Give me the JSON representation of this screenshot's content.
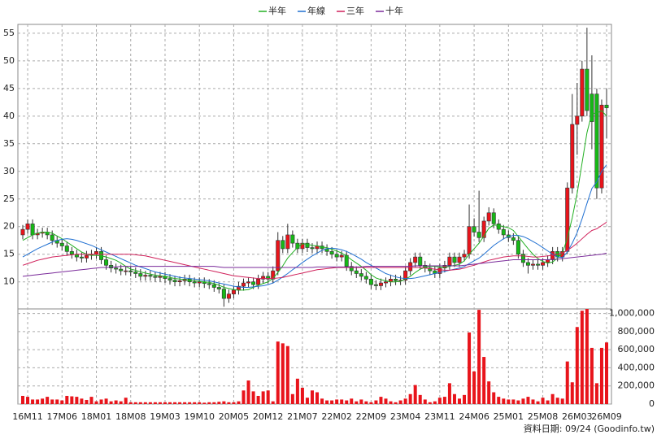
{
  "chart_data": {
    "type": "candlestick",
    "legend": "top",
    "grid": true,
    "source": "資料日期: 09/24 (Goodinfo.tw)",
    "up_color": "#e8141b",
    "down_color": "#16b816",
    "volume_color": "#e8141b",
    "categories": [
      null,
      "16M11",
      null,
      null,
      null,
      null,
      null,
      null,
      "17M06",
      null,
      null,
      null,
      null,
      null,
      null,
      "18M01",
      null,
      null,
      null,
      null,
      null,
      null,
      "18M08",
      null,
      null,
      null,
      null,
      null,
      null,
      "19M03",
      null,
      null,
      null,
      null,
      null,
      null,
      "19M10",
      null,
      null,
      null,
      null,
      null,
      null,
      "20M05",
      null,
      null,
      null,
      null,
      null,
      null,
      "20M12",
      null,
      null,
      null,
      null,
      null,
      null,
      "21M07",
      null,
      null,
      null,
      null,
      null,
      null,
      "22M02",
      null,
      null,
      null,
      null,
      null,
      null,
      "22M09",
      null,
      null,
      null,
      null,
      null,
      null,
      "23M04",
      null,
      null,
      null,
      null,
      null,
      null,
      "23M11",
      null,
      null,
      null,
      null,
      null,
      null,
      "24M06",
      null,
      null,
      null,
      null,
      null,
      null,
      "25M01",
      null,
      null,
      null,
      null,
      null,
      null,
      "25M08",
      null,
      null,
      null,
      null,
      null,
      null,
      "26M03",
      null,
      null,
      null,
      null,
      null,
      "26M09"
    ],
    "open": [
      18.5,
      19.5,
      20.5,
      18.5,
      18.8,
      19.0,
      18.5,
      17.5,
      17.0,
      16.5,
      15.5,
      15.0,
      14.5,
      14.3,
      14.8,
      15.0,
      15.5,
      14.0,
      13.0,
      12.5,
      12.3,
      12.0,
      12.0,
      11.8,
      11.5,
      11.0,
      11.2,
      11.0,
      10.8,
      11.0,
      10.6,
      10.3,
      10.0,
      10.2,
      10.5,
      10.0,
      9.8,
      10.0,
      9.7,
      9.5,
      9.0,
      8.7,
      7.0,
      7.8,
      8.5,
      9.2,
      9.8,
      10.0,
      9.5,
      10.5,
      11.0,
      10.5,
      12.0,
      17.5,
      16.0,
      18.5,
      17.0,
      16.0,
      17.0,
      16.2,
      16.0,
      16.5,
      16.0,
      15.5,
      15.0,
      14.5,
      14.8,
      12.8,
      12.0,
      11.5,
      11.0,
      10.5,
      9.5,
      9.3,
      9.8,
      10.0,
      10.5,
      10.2,
      10.3,
      12.0,
      13.5,
      14.5,
      13.0,
      12.5,
      12.0,
      11.5,
      12.5,
      13.0,
      14.5,
      13.5,
      14.5,
      15.0,
      20.0,
      19.0,
      18.0,
      21.0,
      22.5,
      20.5,
      19.5,
      18.5,
      18.0,
      17.5,
      15.0,
      13.5,
      13.0,
      13.2,
      13.0,
      13.5,
      14.0,
      15.5,
      14.5,
      15.5,
      27.0,
      38.5,
      40.0,
      48.5,
      44.0,
      44.0,
      27.0,
      42.0
    ],
    "high": [
      20.3,
      21.3,
      21.3,
      19.6,
      19.8,
      19.8,
      19.3,
      18.3,
      17.8,
      17.3,
      16.3,
      15.8,
      15.3,
      15.6,
      15.8,
      16.3,
      16.3,
      14.8,
      13.8,
      13.3,
      13.1,
      12.8,
      12.8,
      12.6,
      12.3,
      12.0,
      12.0,
      11.8,
      11.8,
      11.8,
      11.4,
      11.1,
      11.0,
      11.3,
      11.3,
      10.8,
      10.8,
      10.8,
      10.5,
      10.3,
      9.8,
      9.5,
      8.6,
      9.3,
      10.0,
      10.6,
      10.8,
      10.8,
      11.3,
      11.8,
      11.8,
      12.8,
      19.0,
      18.3,
      20.5,
      19.3,
      17.8,
      17.8,
      17.8,
      17.0,
      17.3,
      17.3,
      16.8,
      16.3,
      15.8,
      15.6,
      15.6,
      13.6,
      12.8,
      12.3,
      11.8,
      11.3,
      10.3,
      10.6,
      10.8,
      11.3,
      11.3,
      11.1,
      12.8,
      14.3,
      15.3,
      15.3,
      13.8,
      13.3,
      12.8,
      13.3,
      13.8,
      15.3,
      15.3,
      15.3,
      15.8,
      24.0,
      21.5,
      26.5,
      21.8,
      23.5,
      23.3,
      21.3,
      20.3,
      19.3,
      18.8,
      18.3,
      15.8,
      14.3,
      14.0,
      14.0,
      14.3,
      14.8,
      16.3,
      16.3,
      16.3,
      28.0,
      44.0,
      46.0,
      50.0,
      56.0,
      51.0,
      45.0,
      43.0,
      45.0
    ],
    "low": [
      17.7,
      18.7,
      17.7,
      17.7,
      18.0,
      17.7,
      16.7,
      16.2,
      15.7,
      14.7,
      14.2,
      13.7,
      13.5,
      13.5,
      14.0,
      14.2,
      13.2,
      12.2,
      11.7,
      11.5,
      11.2,
      11.2,
      11.0,
      10.7,
      10.2,
      10.2,
      10.2,
      10.0,
      10.0,
      9.8,
      9.5,
      9.2,
      9.2,
      9.4,
      9.2,
      9.0,
      9.0,
      8.9,
      8.7,
      8.2,
      7.9,
      5.5,
      6.2,
      7.0,
      7.7,
      8.4,
      9.0,
      8.7,
      8.7,
      9.7,
      9.7,
      9.7,
      11.2,
      15.2,
      15.2,
      16.2,
      15.2,
      15.2,
      15.4,
      15.2,
      15.2,
      15.2,
      14.7,
      14.2,
      13.7,
      13.7,
      12.0,
      11.2,
      10.7,
      10.2,
      9.7,
      8.7,
      8.5,
      8.5,
      9.0,
      9.2,
      9.4,
      9.4,
      9.5,
      11.2,
      12.7,
      12.2,
      11.7,
      11.2,
      10.7,
      10.7,
      11.7,
      12.2,
      12.7,
      12.7,
      13.7,
      14.2,
      18.2,
      17.2,
      17.2,
      20.2,
      19.7,
      18.7,
      17.7,
      17.2,
      16.7,
      14.2,
      12.7,
      11.5,
      12.2,
      12.2,
      12.2,
      12.7,
      13.2,
      13.7,
      13.7,
      15.0,
      26.0,
      33.0,
      39.0,
      40.0,
      34.0,
      25.0,
      26.0,
      36.0
    ],
    "close": [
      19.5,
      20.5,
      18.5,
      18.8,
      19.0,
      18.5,
      17.5,
      17.0,
      16.5,
      15.5,
      15.0,
      14.5,
      14.3,
      14.8,
      15.0,
      15.5,
      14.0,
      13.0,
      12.5,
      12.3,
      12.0,
      12.0,
      11.8,
      11.5,
      11.0,
      11.2,
      11.0,
      10.8,
      11.0,
      10.6,
      10.3,
      10.0,
      10.2,
      10.5,
      10.0,
      9.8,
      10.0,
      9.7,
      9.5,
      9.0,
      8.7,
      7.0,
      7.8,
      8.5,
      9.2,
      9.8,
      10.0,
      9.5,
      10.5,
      11.0,
      10.5,
      12.0,
      17.5,
      16.0,
      18.5,
      17.0,
      16.0,
      17.0,
      16.2,
      16.0,
      16.5,
      16.0,
      15.5,
      15.0,
      14.5,
      14.8,
      12.8,
      12.0,
      11.5,
      11.0,
      10.5,
      9.5,
      9.3,
      9.8,
      10.0,
      10.5,
      10.2,
      10.3,
      12.0,
      13.5,
      14.5,
      13.0,
      12.5,
      12.0,
      11.5,
      12.5,
      13.0,
      14.5,
      13.5,
      14.5,
      15.0,
      20.0,
      19.0,
      18.0,
      21.0,
      22.5,
      20.5,
      19.5,
      18.5,
      18.0,
      17.5,
      15.0,
      13.5,
      13.0,
      13.2,
      13.0,
      13.5,
      14.0,
      15.5,
      14.5,
      15.5,
      27.0,
      38.5,
      40.0,
      48.5,
      41.0,
      39.0,
      27.0,
      42.0,
      41.5
    ],
    "volume": [
      90000,
      80000,
      50000,
      50000,
      60000,
      80000,
      50000,
      50000,
      40000,
      90000,
      85000,
      80000,
      60000,
      45000,
      80000,
      30000,
      50000,
      60000,
      30000,
      40000,
      30000,
      70000,
      20000,
      20000,
      20000,
      20000,
      20000,
      20000,
      20000,
      20000,
      20000,
      20000,
      20000,
      20000,
      20000,
      20000,
      20000,
      15000,
      20000,
      20000,
      25000,
      30000,
      20000,
      20000,
      30000,
      150000,
      260000,
      140000,
      90000,
      140000,
      150000,
      30000,
      690000,
      670000,
      640000,
      110000,
      280000,
      180000,
      70000,
      150000,
      130000,
      60000,
      40000,
      40000,
      50000,
      50000,
      40000,
      60000,
      30000,
      50000,
      30000,
      20000,
      40000,
      80000,
      60000,
      30000,
      20000,
      40000,
      60000,
      110000,
      210000,
      100000,
      50000,
      20000,
      30000,
      70000,
      80000,
      230000,
      110000,
      60000,
      100000,
      790000,
      360000,
      1040000,
      520000,
      250000,
      130000,
      80000,
      60000,
      50000,
      50000,
      40000,
      60000,
      80000,
      50000,
      30000,
      70000,
      40000,
      110000,
      70000,
      60000,
      470000,
      240000,
      850000,
      1030000,
      1050000,
      620000,
      230000,
      620000,
      680000
    ],
    "series": [
      {
        "name": "半年",
        "color": "#22b022",
        "values": [
          17.5,
          18,
          18.5,
          18.8,
          19,
          19,
          18.8,
          18.3,
          17.8,
          17.2,
          16.6,
          16.0,
          15.4,
          15.0,
          14.8,
          14.8,
          14.7,
          14.5,
          14.2,
          13.9,
          13.4,
          12.8,
          12.3,
          12.1,
          11.8,
          11.6,
          11.4,
          11.2,
          11.1,
          11.0,
          10.8,
          10.6,
          10.5,
          10.4,
          10.3,
          10.2,
          10.1,
          10.0,
          9.9,
          9.7,
          9.4,
          9.0,
          8.8,
          8.6,
          8.5,
          8.5,
          8.6,
          9.0,
          9.4,
          9.7,
          10.0,
          10.6,
          11.7,
          12.9,
          14.3,
          15.3,
          16.2,
          16.9,
          16.8,
          16.6,
          16.5,
          16.3,
          16.2,
          15.9,
          15.6,
          15.2,
          14.7,
          14.0,
          13.4,
          12.8,
          12.1,
          11.3,
          10.7,
          10.4,
          10.2,
          10.0,
          10.0,
          10.1,
          10.5,
          11.0,
          11.7,
          12.3,
          12.6,
          12.8,
          12.8,
          12.7,
          12.6,
          12.8,
          13.0,
          13.2,
          13.8,
          15.0,
          16.0,
          17.0,
          18.3,
          19.7,
          20.3,
          20.2,
          20.0,
          19.8,
          19.3,
          18.2,
          17.1,
          16.0,
          15.0,
          14.2,
          13.7,
          13.4,
          13.6,
          14.3,
          15.2,
          17.9,
          21.6,
          26.0,
          31.5,
          37.0,
          40.5,
          40.5,
          41.0,
          40.0
        ]
      },
      {
        "name": "年線",
        "color": "#1f6fd1",
        "values": [
          14.5,
          15.0,
          15.5,
          16.0,
          16.4,
          16.8,
          17.2,
          17.5,
          17.7,
          17.8,
          17.7,
          17.5,
          17.2,
          16.9,
          16.6,
          16.2,
          15.8,
          15.4,
          15.0,
          14.6,
          14.2,
          13.8,
          13.4,
          13.0,
          12.7,
          12.4,
          12.1,
          11.8,
          11.6,
          11.4,
          11.2,
          11.0,
          10.8,
          10.7,
          10.6,
          10.5,
          10.4,
          10.3,
          10.2,
          10.0,
          9.8,
          9.6,
          9.4,
          9.2,
          9.1,
          9.0,
          9.0,
          9.1,
          9.2,
          9.3,
          9.5,
          9.8,
          10.3,
          10.9,
          11.5,
          12.2,
          12.8,
          13.5,
          14.1,
          14.7,
          15.2,
          15.7,
          16.0,
          16.1,
          16.0,
          15.8,
          15.5,
          15.1,
          14.6,
          14.1,
          13.5,
          13.0,
          12.5,
          12.0,
          11.5,
          11.2,
          10.9,
          10.7,
          10.6,
          10.6,
          10.7,
          10.9,
          11.1,
          11.3,
          11.5,
          11.7,
          11.9,
          12.1,
          12.3,
          12.5,
          12.8,
          13.3,
          13.8,
          14.3,
          15.0,
          15.8,
          16.6,
          17.2,
          17.8,
          18.2,
          18.4,
          18.4,
          18.2,
          17.8,
          17.3,
          16.8,
          16.2,
          15.6,
          15.0,
          14.5,
          14.4,
          15.4,
          17.0,
          18.9,
          21.4,
          24.2,
          26.9,
          28.1,
          30.0,
          31.2
        ]
      },
      {
        "name": "三年",
        "color": "#d0205a",
        "values": [
          13.0,
          13.3,
          13.6,
          13.9,
          14.1,
          14.3,
          14.5,
          14.6,
          14.7,
          14.8,
          14.9,
          15.0,
          15.0,
          15.0,
          15.0,
          15.0,
          15.0,
          15.0,
          15.0,
          15.0,
          15.0,
          15.0,
          15.0,
          14.9,
          14.8,
          14.7,
          14.5,
          14.3,
          14.1,
          13.9,
          13.7,
          13.5,
          13.3,
          13.1,
          12.9,
          12.7,
          12.5,
          12.3,
          12.1,
          11.9,
          11.7,
          11.5,
          11.3,
          11.1,
          11.0,
          10.9,
          10.8,
          10.7,
          10.6,
          10.6,
          10.6,
          10.6,
          10.7,
          10.8,
          11.0,
          11.2,
          11.4,
          11.6,
          11.8,
          12.0,
          12.2,
          12.3,
          12.4,
          12.5,
          12.6,
          12.6,
          12.6,
          12.6,
          12.6,
          12.6,
          12.6,
          12.6,
          12.6,
          12.6,
          12.6,
          12.6,
          12.6,
          12.6,
          12.6,
          12.6,
          12.6,
          12.6,
          12.5,
          12.4,
          12.3,
          12.2,
          12.1,
          12.1,
          12.2,
          12.3,
          12.5,
          12.8,
          13.0,
          13.3,
          13.6,
          13.9,
          14.1,
          14.3,
          14.5,
          14.6,
          14.7,
          14.7,
          14.7,
          14.6,
          14.5,
          14.5,
          14.6,
          14.7,
          14.8,
          15.0,
          15.2,
          15.7,
          16.3,
          17.0,
          17.8,
          18.6,
          19.3,
          19.6,
          20.2,
          20.8
        ]
      },
      {
        "name": "十年",
        "color": "#7a2a9a",
        "values": [
          11.0,
          11.1,
          11.2,
          11.3,
          11.4,
          11.5,
          11.6,
          11.7,
          11.8,
          11.9,
          12.0,
          12.1,
          12.2,
          12.3,
          12.4,
          12.5,
          12.6,
          12.6,
          12.7,
          12.7,
          12.8,
          12.8,
          12.8,
          12.8,
          12.8,
          12.8,
          12.8,
          12.8,
          12.8,
          12.8,
          12.8,
          12.8,
          12.8,
          12.8,
          12.8,
          12.8,
          12.8,
          12.8,
          12.8,
          12.8,
          12.7,
          12.6,
          12.6,
          12.6,
          12.6,
          12.6,
          12.6,
          12.6,
          12.6,
          12.6,
          12.6,
          12.6,
          12.6,
          12.6,
          12.6,
          12.6,
          12.6,
          12.6,
          12.6,
          12.6,
          12.7,
          12.7,
          12.7,
          12.7,
          12.7,
          12.7,
          12.7,
          12.7,
          12.7,
          12.7,
          12.8,
          12.8,
          12.8,
          12.8,
          12.8,
          12.8,
          12.8,
          12.8,
          12.8,
          12.8,
          12.9,
          12.9,
          12.9,
          12.9,
          12.9,
          12.9,
          12.9,
          12.9,
          12.9,
          12.9,
          13.0,
          13.1,
          13.2,
          13.3,
          13.4,
          13.5,
          13.6,
          13.7,
          13.8,
          13.9,
          14.0,
          14.0,
          14.0,
          14.0,
          14.0,
          14.0,
          14.0,
          14.0,
          14.1,
          14.1,
          14.2,
          14.3,
          14.4,
          14.5,
          14.6,
          14.7,
          14.8,
          14.9,
          15.0,
          15.2
        ]
      }
    ],
    "ylim": [
      5.1,
      56.6
    ],
    "yticks": [
      10,
      15,
      20,
      25,
      30,
      35,
      40,
      45,
      50,
      55
    ],
    "volume_ylim": [
      0,
      1050000
    ],
    "volume_yticks": [
      0,
      {
        "value": 200000,
        "label": "200,000"
      },
      {
        "value": 400000,
        "label": "400,000"
      },
      {
        "value": 600000,
        "label": "600,000"
      },
      {
        "value": 800000,
        "label": "800,000"
      },
      {
        "value": 1000000,
        "label": "1,000,000"
      }
    ]
  }
}
